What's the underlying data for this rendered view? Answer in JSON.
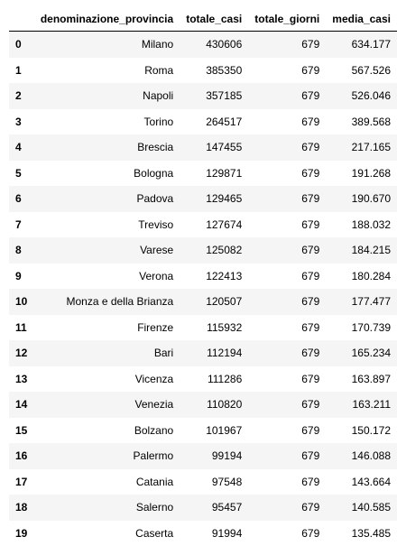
{
  "table": {
    "headers": {
      "index": "",
      "denominazione_provincia": "denominazione_provincia",
      "totale_casi": "totale_casi",
      "totale_giorni": "totale_giorni",
      "media_casi": "media_casi"
    },
    "rows": [
      {
        "index": "0",
        "provincia": "Milano",
        "totale_casi": "430606",
        "totale_giorni": "679",
        "media_casi": "634.177"
      },
      {
        "index": "1",
        "provincia": "Roma",
        "totale_casi": "385350",
        "totale_giorni": "679",
        "media_casi": "567.526"
      },
      {
        "index": "2",
        "provincia": "Napoli",
        "totale_casi": "357185",
        "totale_giorni": "679",
        "media_casi": "526.046"
      },
      {
        "index": "3",
        "provincia": "Torino",
        "totale_casi": "264517",
        "totale_giorni": "679",
        "media_casi": "389.568"
      },
      {
        "index": "4",
        "provincia": "Brescia",
        "totale_casi": "147455",
        "totale_giorni": "679",
        "media_casi": "217.165"
      },
      {
        "index": "5",
        "provincia": "Bologna",
        "totale_casi": "129871",
        "totale_giorni": "679",
        "media_casi": "191.268"
      },
      {
        "index": "6",
        "provincia": "Padova",
        "totale_casi": "129465",
        "totale_giorni": "679",
        "media_casi": "190.670"
      },
      {
        "index": "7",
        "provincia": "Treviso",
        "totale_casi": "127674",
        "totale_giorni": "679",
        "media_casi": "188.032"
      },
      {
        "index": "8",
        "provincia": "Varese",
        "totale_casi": "125082",
        "totale_giorni": "679",
        "media_casi": "184.215"
      },
      {
        "index": "9",
        "provincia": "Verona",
        "totale_casi": "122413",
        "totale_giorni": "679",
        "media_casi": "180.284"
      },
      {
        "index": "10",
        "provincia": "Monza e della Brianza",
        "totale_casi": "120507",
        "totale_giorni": "679",
        "media_casi": "177.477"
      },
      {
        "index": "11",
        "provincia": "Firenze",
        "totale_casi": "115932",
        "totale_giorni": "679",
        "media_casi": "170.739"
      },
      {
        "index": "12",
        "provincia": "Bari",
        "totale_casi": "112194",
        "totale_giorni": "679",
        "media_casi": "165.234"
      },
      {
        "index": "13",
        "provincia": "Vicenza",
        "totale_casi": "111286",
        "totale_giorni": "679",
        "media_casi": "163.897"
      },
      {
        "index": "14",
        "provincia": "Venezia",
        "totale_casi": "110820",
        "totale_giorni": "679",
        "media_casi": "163.211"
      },
      {
        "index": "15",
        "provincia": "Bolzano",
        "totale_casi": "101967",
        "totale_giorni": "679",
        "media_casi": "150.172"
      },
      {
        "index": "16",
        "provincia": "Palermo",
        "totale_casi": "99194",
        "totale_giorni": "679",
        "media_casi": "146.088"
      },
      {
        "index": "17",
        "provincia": "Catania",
        "totale_casi": "97548",
        "totale_giorni": "679",
        "media_casi": "143.664"
      },
      {
        "index": "18",
        "provincia": "Salerno",
        "totale_casi": "95457",
        "totale_giorni": "679",
        "media_casi": "140.585"
      },
      {
        "index": "19",
        "provincia": "Caserta",
        "totale_casi": "91994",
        "totale_giorni": "679",
        "media_casi": "135.485"
      }
    ]
  }
}
